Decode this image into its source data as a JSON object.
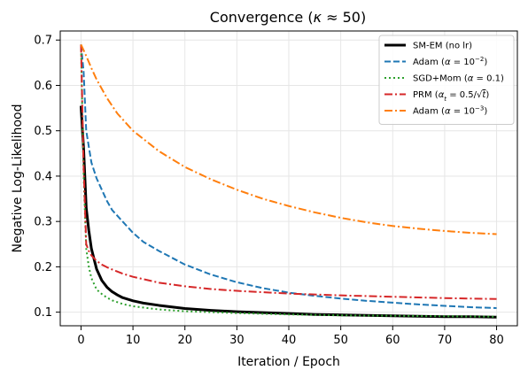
{
  "chart_data": {
    "type": "line",
    "title_main": "Convergence (",
    "title_kappa": "κ",
    "title_approx": " ≈ 50)",
    "xlabel": "Iteration / Epoch",
    "ylabel": "Negative Log-Likelihood",
    "xlim": [
      -4,
      84
    ],
    "ylim": [
      0.07,
      0.72
    ],
    "xticks": [
      0,
      10,
      20,
      30,
      40,
      50,
      60,
      70,
      80
    ],
    "yticks": [
      0.1,
      0.2,
      0.3,
      0.4,
      0.5,
      0.6,
      0.7
    ],
    "grid": true,
    "legend_position": "top-right",
    "series": [
      {
        "legend": {
          "name": "SM-EM (no lr)"
        },
        "color": "#000000",
        "style": "solid",
        "width": 3,
        "x": [
          0,
          0.5,
          1,
          1.5,
          2,
          3,
          4,
          5,
          6,
          7,
          8,
          10,
          12,
          15,
          20,
          25,
          30,
          35,
          40,
          45,
          50,
          55,
          60,
          65,
          70,
          75,
          80
        ],
        "y": [
          0.555,
          0.46,
          0.33,
          0.28,
          0.24,
          0.195,
          0.17,
          0.155,
          0.145,
          0.138,
          0.132,
          0.125,
          0.12,
          0.115,
          0.108,
          0.104,
          0.101,
          0.099,
          0.097,
          0.095,
          0.094,
          0.093,
          0.092,
          0.091,
          0.09,
          0.09,
          0.089
        ]
      },
      {
        "legend": {
          "prefix": "Adam (",
          "alpha": "α",
          "mid": " = 10",
          "sup": "−2",
          "suffix": ")"
        },
        "color": "#1f77b4",
        "style": "dashed",
        "width": 2,
        "x": [
          0,
          0.5,
          1,
          2,
          3,
          4,
          5,
          6,
          8,
          10,
          12,
          15,
          20,
          25,
          30,
          35,
          40,
          45,
          50,
          55,
          60,
          65,
          70,
          75,
          80
        ],
        "y": [
          0.69,
          0.63,
          0.5,
          0.43,
          0.395,
          0.37,
          0.345,
          0.325,
          0.3,
          0.275,
          0.255,
          0.235,
          0.205,
          0.183,
          0.166,
          0.153,
          0.143,
          0.136,
          0.13,
          0.125,
          0.121,
          0.117,
          0.114,
          0.111,
          0.109
        ]
      },
      {
        "legend": {
          "prefix": "SGD+Mom (",
          "alpha": "α",
          "mid": " = 0.1",
          "suffix": ")"
        },
        "color": "#2ca02c",
        "style": "dotted",
        "width": 2,
        "x": [
          0,
          0.5,
          1,
          1.5,
          2,
          3,
          4,
          5,
          6,
          8,
          10,
          15,
          20,
          30,
          40,
          50,
          60,
          70,
          80
        ],
        "y": [
          0.69,
          0.4,
          0.24,
          0.2,
          0.175,
          0.15,
          0.14,
          0.132,
          0.126,
          0.118,
          0.113,
          0.106,
          0.102,
          0.098,
          0.095,
          0.093,
          0.092,
          0.091,
          0.09
        ]
      },
      {
        "legend": {
          "prefix": "PRM (",
          "alpha": "α",
          "sub": "t",
          "mid": " = 0.5/√",
          "tvar": "t",
          "suffix": ")"
        },
        "color": "#d62728",
        "style": "dashdot",
        "width": 2,
        "x": [
          0,
          0.5,
          1,
          1.5,
          2,
          3,
          4,
          5,
          6,
          8,
          10,
          15,
          20,
          25,
          30,
          40,
          50,
          60,
          70,
          80
        ],
        "y": [
          0.69,
          0.42,
          0.25,
          0.235,
          0.225,
          0.213,
          0.205,
          0.199,
          0.194,
          0.185,
          0.178,
          0.165,
          0.157,
          0.151,
          0.147,
          0.141,
          0.137,
          0.134,
          0.131,
          0.129
        ]
      },
      {
        "legend": {
          "prefix": "Adam (",
          "alpha": "α",
          "mid": " = 10",
          "sup": "−3",
          "suffix": ")"
        },
        "color": "#ff7f0e",
        "style": "dashdot",
        "width": 2,
        "x": [
          0,
          1,
          2,
          3,
          5,
          7,
          10,
          15,
          20,
          25,
          30,
          35,
          40,
          45,
          50,
          55,
          60,
          65,
          70,
          75,
          80
        ],
        "y": [
          0.69,
          0.665,
          0.638,
          0.613,
          0.572,
          0.538,
          0.5,
          0.455,
          0.42,
          0.393,
          0.37,
          0.35,
          0.334,
          0.32,
          0.308,
          0.298,
          0.29,
          0.284,
          0.279,
          0.275,
          0.272
        ]
      }
    ]
  }
}
